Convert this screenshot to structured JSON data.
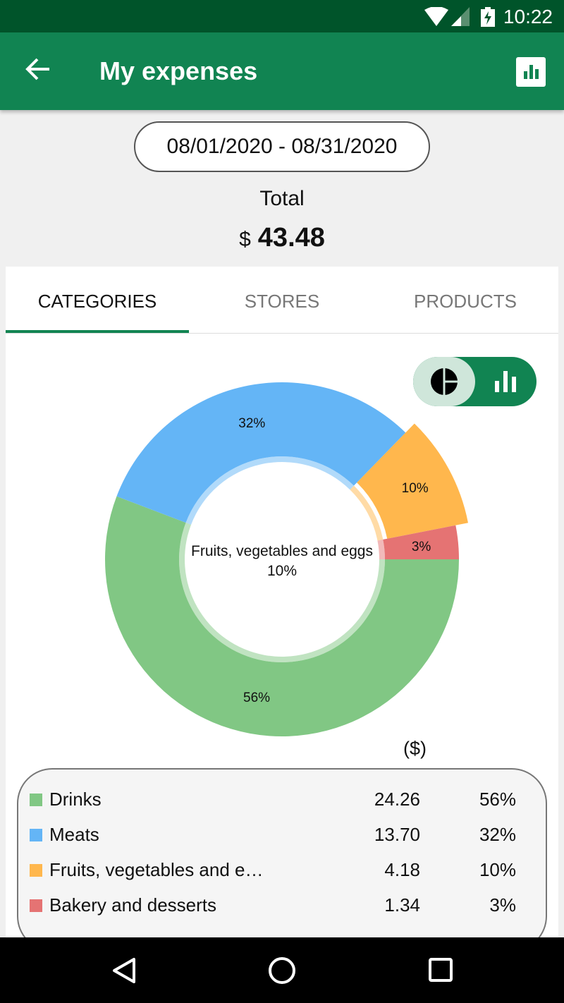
{
  "status": {
    "time": "10:22"
  },
  "appbar": {
    "title": "My expenses"
  },
  "date_range": "08/01/2020 - 08/31/2020",
  "total": {
    "label": "Total",
    "currency": "$",
    "amount": "43.48"
  },
  "tabs": [
    {
      "label": "CATEGORIES",
      "active": true
    },
    {
      "label": "STORES",
      "active": false
    },
    {
      "label": "PRODUCTS",
      "active": false
    }
  ],
  "toggle": {
    "selected": "pie"
  },
  "chart_data": {
    "type": "pie",
    "donut": true,
    "categories": [
      "Drinks",
      "Meats",
      "Fruits, vegetables and eggs",
      "Bakery and desserts"
    ],
    "values": [
      24.26,
      13.7,
      4.18,
      1.34
    ],
    "percent_labels": [
      "56%",
      "32%",
      "10%",
      "3%"
    ],
    "colors": [
      "#81c784",
      "#64b5f6",
      "#ffb74d",
      "#e57373"
    ],
    "highlighted": 2,
    "center_label": "Fruits, vegetables and eggs",
    "center_value": "10%"
  },
  "legend": {
    "unit": "($)",
    "rows": [
      {
        "name": "Drinks",
        "value": "24.26",
        "pct": "56%"
      },
      {
        "name": "Meats",
        "value": "13.70",
        "pct": "32%"
      },
      {
        "name": "Fruits, vegetables and e…",
        "value": "4.18",
        "pct": "10%"
      },
      {
        "name": "Bakery and desserts",
        "value": "1.34",
        "pct": "3%"
      }
    ]
  }
}
